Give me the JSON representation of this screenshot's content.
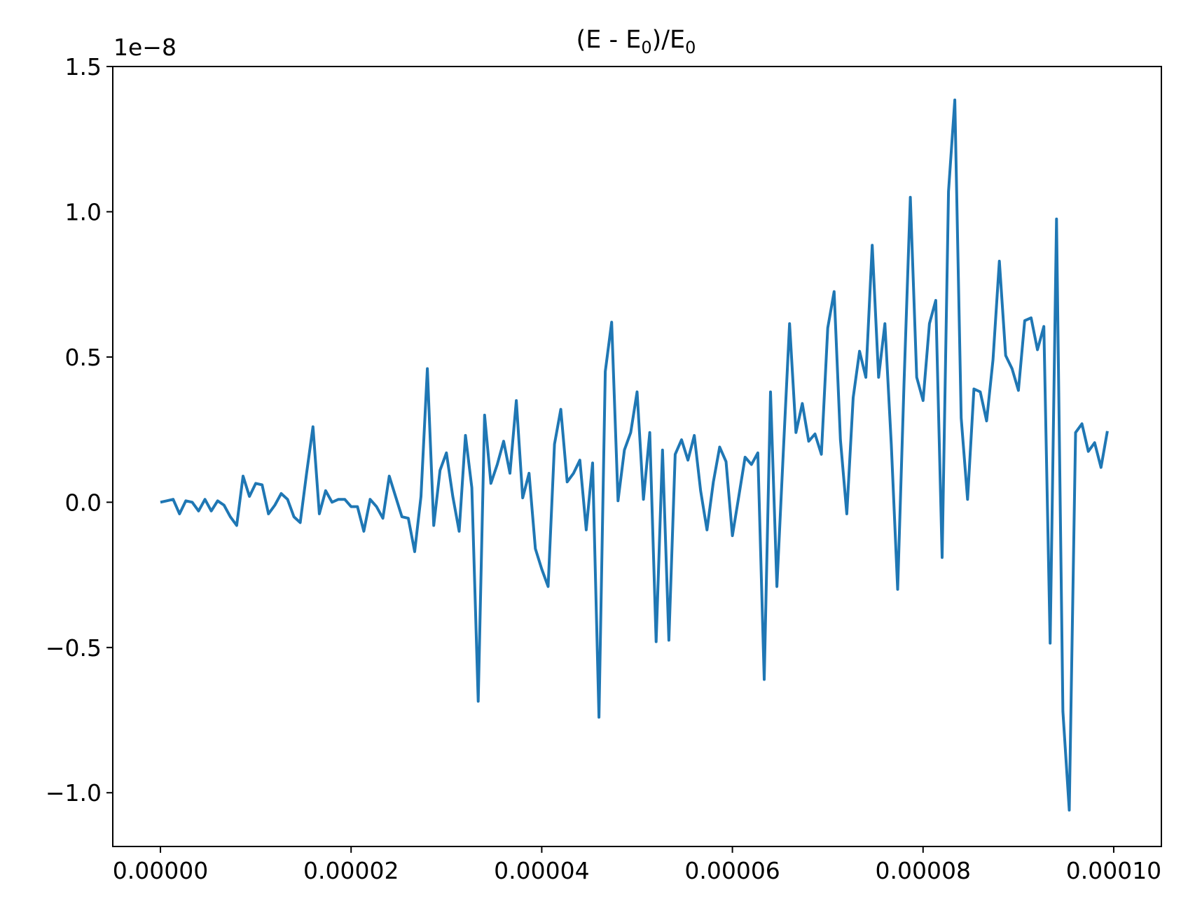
{
  "chart_data": {
    "type": "line",
    "title_main": "(E - E",
    "title_sub1": "0",
    "title_mid": ")/E",
    "title_sub2": "0",
    "offset_label": "1e−8",
    "xlabel": "",
    "ylabel": "",
    "xlim": [
      -5e-06,
      0.000105
    ],
    "ylim": [
      -1.185,
      1.5
    ],
    "xticks": [
      0,
      2e-05,
      4e-05,
      6e-05,
      8e-05,
      0.0001
    ],
    "xtick_labels": [
      "0.00000",
      "0.00002",
      "0.00004",
      "0.00006",
      "0.00008",
      "0.00010"
    ],
    "yticks": [
      -1.0,
      -0.5,
      0.0,
      0.5,
      1.0,
      1.5
    ],
    "ytick_labels": [
      "−1.0",
      "−0.5",
      "0.0",
      "0.5",
      "1.0",
      "1.5"
    ],
    "grid": false,
    "legend": "none",
    "series": [
      {
        "color": "#1f77b4",
        "x_start": 0,
        "x_step": 6.6667e-07,
        "y": [
          0.0,
          0.005,
          0.01,
          -0.04,
          0.005,
          0.0,
          -0.03,
          0.01,
          -0.03,
          0.005,
          -0.01,
          -0.05,
          -0.08,
          0.09,
          0.02,
          0.065,
          0.06,
          -0.04,
          -0.01,
          0.03,
          0.01,
          -0.05,
          -0.07,
          0.1,
          0.26,
          -0.04,
          0.04,
          0.0,
          0.01,
          0.01,
          -0.015,
          -0.015,
          -0.1,
          0.01,
          -0.015,
          -0.055,
          0.09,
          0.02,
          -0.05,
          -0.055,
          -0.17,
          0.02,
          0.46,
          -0.08,
          0.11,
          0.17,
          0.02,
          -0.1,
          0.23,
          0.05,
          -0.685,
          0.3,
          0.065,
          0.13,
          0.21,
          0.1,
          0.35,
          0.015,
          0.1,
          -0.16,
          -0.23,
          -0.29,
          0.2,
          0.32,
          0.07,
          0.1,
          0.145,
          -0.095,
          0.135,
          -0.74,
          0.45,
          0.62,
          0.005,
          0.18,
          0.24,
          0.38,
          0.01,
          0.24,
          -0.48,
          0.18,
          -0.475,
          0.165,
          0.215,
          0.145,
          0.23,
          0.04,
          -0.095,
          0.07,
          0.19,
          0.14,
          -0.115,
          0.02,
          0.155,
          0.13,
          0.17,
          -0.61,
          0.38,
          -0.29,
          0.17,
          0.615,
          0.24,
          0.34,
          0.21,
          0.235,
          0.165,
          0.6,
          0.725,
          0.215,
          -0.04,
          0.36,
          0.52,
          0.43,
          0.885,
          0.43,
          0.615,
          0.2,
          -0.3,
          0.41,
          1.05,
          0.43,
          0.35,
          0.615,
          0.695,
          -0.19,
          1.07,
          1.385,
          0.29,
          0.01,
          0.39,
          0.38,
          0.28,
          0.49,
          0.83,
          0.505,
          0.46,
          0.385,
          0.625,
          0.635,
          0.525,
          0.605,
          -0.485,
          0.975,
          -0.72,
          -1.06,
          0.24,
          0.27,
          0.175,
          0.205,
          0.12,
          0.245
        ]
      }
    ]
  }
}
